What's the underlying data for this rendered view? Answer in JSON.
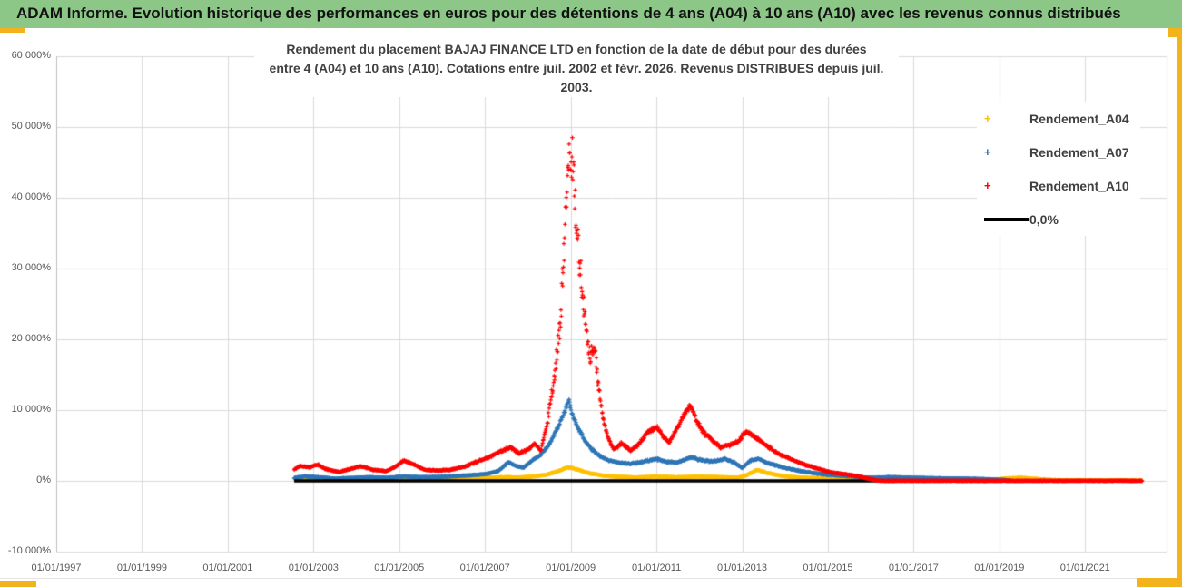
{
  "header": {
    "title": "ADAM Informe. Evolution historique des performances en euros pour des détentions de 4 ans (A04) à 10 ans (A10) avec les revenus connus distribués",
    "background_color": "#8DC788"
  },
  "chart": {
    "title_line1": "Rendement du placement BAJAJ FINANCE LTD en fonction de la date de début pour des durées",
    "title_line2": "entre 4 (A04) et 10 ans (A10). Cotations entre juil. 2002 et févr. 2026. Revenus DISTRIBUES depuis juil. 2003.",
    "border_accent_color": "#F2B31C",
    "gridline_color": "#DADADA",
    "axis_line_color": "#BFBFBF"
  },
  "legend": {
    "items": [
      {
        "label": "Rendement_A04",
        "color": "#FFC000",
        "marker": "plus"
      },
      {
        "label": "Rendement_A07",
        "color": "#2E75B6",
        "marker": "plus"
      },
      {
        "label": "Rendement_A10",
        "color": "#FF0000",
        "marker": "plus"
      },
      {
        "label": "0,0%",
        "color": "#000000",
        "marker": "line"
      }
    ]
  },
  "chart_data": {
    "type": "scatter",
    "title": "Rendement du placement BAJAJ FINANCE LTD en fonction de la date de début pour des durées entre 4 (A04) et 10 ans (A10). Cotations entre juil. 2002 et févr. 2026. Revenus DISTRIBUES depuis juil. 2003.",
    "xlabel": "",
    "ylabel": "",
    "x_axis": {
      "tick_labels": [
        "01/01/1997",
        "01/01/1999",
        "01/01/2001",
        "01/01/2003",
        "01/01/2005",
        "01/01/2007",
        "01/01/2009",
        "01/01/2011",
        "01/01/2013",
        "01/01/2015",
        "01/01/2017",
        "01/01/2019",
        "01/01/2021"
      ],
      "tick_years": [
        1997,
        1999,
        2001,
        2003,
        2005,
        2007,
        2009,
        2011,
        2013,
        2015,
        2017,
        2019,
        2021
      ],
      "range": [
        1997,
        2022.9
      ],
      "grid": true
    },
    "y_axis": {
      "tick_labels": [
        "60 000%",
        "50 000%",
        "40 000%",
        "30 000%",
        "20 000%",
        "10 000%",
        "0%",
        "-10 000%"
      ],
      "tick_values": [
        60000,
        50000,
        40000,
        30000,
        20000,
        10000,
        0,
        -10000
      ],
      "range": [
        -10000,
        60000
      ],
      "grid": true
    },
    "legend_position": "right",
    "marker": "+",
    "draw_order": [
      "Rendement_A04",
      "Rendement_A07",
      "0,0%",
      "Rendement_A10"
    ],
    "series": [
      {
        "name": "Rendement_A04",
        "color": "#FFC000",
        "marker": "+",
        "spread_abs": 25,
        "spread_rel": 0.07,
        "points": [
          [
            2002.55,
            300
          ],
          [
            2003.0,
            380
          ],
          [
            2003.5,
            220
          ],
          [
            2004.0,
            300
          ],
          [
            2004.5,
            260
          ],
          [
            2005.0,
            360
          ],
          [
            2005.5,
            290
          ],
          [
            2006.0,
            310
          ],
          [
            2006.5,
            360
          ],
          [
            2007.0,
            420
          ],
          [
            2007.5,
            520
          ],
          [
            2007.8,
            460
          ],
          [
            2008.1,
            620
          ],
          [
            2008.4,
            820
          ],
          [
            2008.7,
            1350
          ],
          [
            2008.95,
            1950
          ],
          [
            2009.1,
            1700
          ],
          [
            2009.3,
            1300
          ],
          [
            2009.5,
            1000
          ],
          [
            2009.8,
            720
          ],
          [
            2010.1,
            580
          ],
          [
            2010.5,
            480
          ],
          [
            2011.0,
            600
          ],
          [
            2011.5,
            500
          ],
          [
            2012.0,
            600
          ],
          [
            2012.5,
            520
          ],
          [
            2012.9,
            450
          ],
          [
            2013.1,
            800
          ],
          [
            2013.35,
            1550
          ],
          [
            2013.6,
            1100
          ],
          [
            2013.9,
            720
          ],
          [
            2014.2,
            520
          ],
          [
            2014.6,
            420
          ],
          [
            2015.0,
            360
          ],
          [
            2015.5,
            260
          ],
          [
            2016.0,
            160
          ],
          [
            2016.5,
            130
          ],
          [
            2017.0,
            160
          ],
          [
            2017.5,
            140
          ],
          [
            2017.9,
            230
          ],
          [
            2018.3,
            130
          ],
          [
            2018.8,
            110
          ],
          [
            2019.2,
            360
          ],
          [
            2019.5,
            440
          ],
          [
            2019.8,
            290
          ],
          [
            2020.2,
            130
          ],
          [
            2020.6,
            90
          ],
          [
            2021.0,
            70
          ],
          [
            2021.5,
            55
          ],
          [
            2022.33,
            45
          ]
        ]
      },
      {
        "name": "Rendement_A07",
        "color": "#2E75B6",
        "marker": "+",
        "spread_abs": 30,
        "spread_rel": 0.06,
        "points": [
          [
            2002.55,
            420
          ],
          [
            2002.8,
            620
          ],
          [
            2003.1,
            520
          ],
          [
            2003.5,
            320
          ],
          [
            2003.9,
            420
          ],
          [
            2004.3,
            520
          ],
          [
            2004.7,
            430
          ],
          [
            2005.1,
            620
          ],
          [
            2005.5,
            520
          ],
          [
            2005.9,
            560
          ],
          [
            2006.3,
            660
          ],
          [
            2006.7,
            820
          ],
          [
            2007.0,
            950
          ],
          [
            2007.3,
            1350
          ],
          [
            2007.55,
            2650
          ],
          [
            2007.7,
            2150
          ],
          [
            2007.9,
            1850
          ],
          [
            2008.1,
            2850
          ],
          [
            2008.3,
            3650
          ],
          [
            2008.5,
            5250
          ],
          [
            2008.7,
            7600
          ],
          [
            2008.85,
            9600
          ],
          [
            2008.95,
            11300
          ],
          [
            2009.05,
            9200
          ],
          [
            2009.2,
            7100
          ],
          [
            2009.35,
            5600
          ],
          [
            2009.5,
            4400
          ],
          [
            2009.7,
            3400
          ],
          [
            2009.9,
            2900
          ],
          [
            2010.1,
            2600
          ],
          [
            2010.4,
            2400
          ],
          [
            2010.7,
            2700
          ],
          [
            2011.0,
            3100
          ],
          [
            2011.2,
            2700
          ],
          [
            2011.5,
            2600
          ],
          [
            2011.8,
            3300
          ],
          [
            2012.0,
            3000
          ],
          [
            2012.3,
            2700
          ],
          [
            2012.6,
            3100
          ],
          [
            2012.85,
            2500
          ],
          [
            2013.0,
            1800
          ],
          [
            2013.2,
            2900
          ],
          [
            2013.4,
            3100
          ],
          [
            2013.6,
            2500
          ],
          [
            2013.9,
            2000
          ],
          [
            2014.2,
            1550
          ],
          [
            2014.6,
            1150
          ],
          [
            2015.0,
            850
          ],
          [
            2015.5,
            650
          ],
          [
            2016.0,
            420
          ],
          [
            2016.4,
            520
          ],
          [
            2016.8,
            470
          ],
          [
            2017.2,
            400
          ],
          [
            2017.6,
            360
          ],
          [
            2018.0,
            330
          ],
          [
            2018.4,
            290
          ],
          [
            2018.8,
            210
          ],
          [
            2019.1,
            130
          ],
          [
            2019.25,
            60
          ]
        ]
      },
      {
        "name": "Rendement_A10",
        "color": "#FF0000",
        "marker": "+",
        "spread_abs": 40,
        "spread_rel": 0.055,
        "volatile_window": {
          "x_from": 2008.45,
          "x_to": 2009.75,
          "spread_multiplier": 2.4
        },
        "points": [
          [
            2002.55,
            1600
          ],
          [
            2002.7,
            2100
          ],
          [
            2002.9,
            1900
          ],
          [
            2003.1,
            2300
          ],
          [
            2003.3,
            1650
          ],
          [
            2003.6,
            1250
          ],
          [
            2003.9,
            1750
          ],
          [
            2004.1,
            2050
          ],
          [
            2004.4,
            1550
          ],
          [
            2004.7,
            1350
          ],
          [
            2004.9,
            1950
          ],
          [
            2005.1,
            2850
          ],
          [
            2005.3,
            2450
          ],
          [
            2005.6,
            1550
          ],
          [
            2005.9,
            1450
          ],
          [
            2006.2,
            1550
          ],
          [
            2006.5,
            1950
          ],
          [
            2006.8,
            2650
          ],
          [
            2007.1,
            3350
          ],
          [
            2007.4,
            4250
          ],
          [
            2007.6,
            4750
          ],
          [
            2007.8,
            3850
          ],
          [
            2008.0,
            4450
          ],
          [
            2008.15,
            5250
          ],
          [
            2008.3,
            4250
          ],
          [
            2008.45,
            8000
          ],
          [
            2008.6,
            14000
          ],
          [
            2008.75,
            22000
          ],
          [
            2008.85,
            33000
          ],
          [
            2008.95,
            48000
          ],
          [
            2009.05,
            43000
          ],
          [
            2009.15,
            35000
          ],
          [
            2009.25,
            28000
          ],
          [
            2009.35,
            22000
          ],
          [
            2009.45,
            17500
          ],
          [
            2009.55,
            19500
          ],
          [
            2009.65,
            13000
          ],
          [
            2009.75,
            9000
          ],
          [
            2009.85,
            6500
          ],
          [
            2010.0,
            4400
          ],
          [
            2010.2,
            5300
          ],
          [
            2010.4,
            4200
          ],
          [
            2010.6,
            5300
          ],
          [
            2010.8,
            6900
          ],
          [
            2011.0,
            7600
          ],
          [
            2011.15,
            6300
          ],
          [
            2011.3,
            5400
          ],
          [
            2011.5,
            7700
          ],
          [
            2011.65,
            9300
          ],
          [
            2011.8,
            10600
          ],
          [
            2011.95,
            8300
          ],
          [
            2012.1,
            6900
          ],
          [
            2012.3,
            5700
          ],
          [
            2012.5,
            4700
          ],
          [
            2012.7,
            5100
          ],
          [
            2012.9,
            5500
          ],
          [
            2013.1,
            7000
          ],
          [
            2013.3,
            6200
          ],
          [
            2013.5,
            5300
          ],
          [
            2013.7,
            4400
          ],
          [
            2013.9,
            3700
          ],
          [
            2014.2,
            2900
          ],
          [
            2014.5,
            2200
          ],
          [
            2014.8,
            1650
          ],
          [
            2015.1,
            1150
          ],
          [
            2015.4,
            950
          ],
          [
            2015.7,
            650
          ],
          [
            2016.0,
            250
          ],
          [
            2016.15,
            40
          ],
          [
            2016.3,
            5
          ],
          [
            2022.33,
            5
          ]
        ]
      },
      {
        "name": "0,0%",
        "color": "#000000",
        "marker": "line",
        "points": [
          [
            2002.55,
            0
          ],
          [
            2022.33,
            0
          ]
        ]
      }
    ]
  }
}
